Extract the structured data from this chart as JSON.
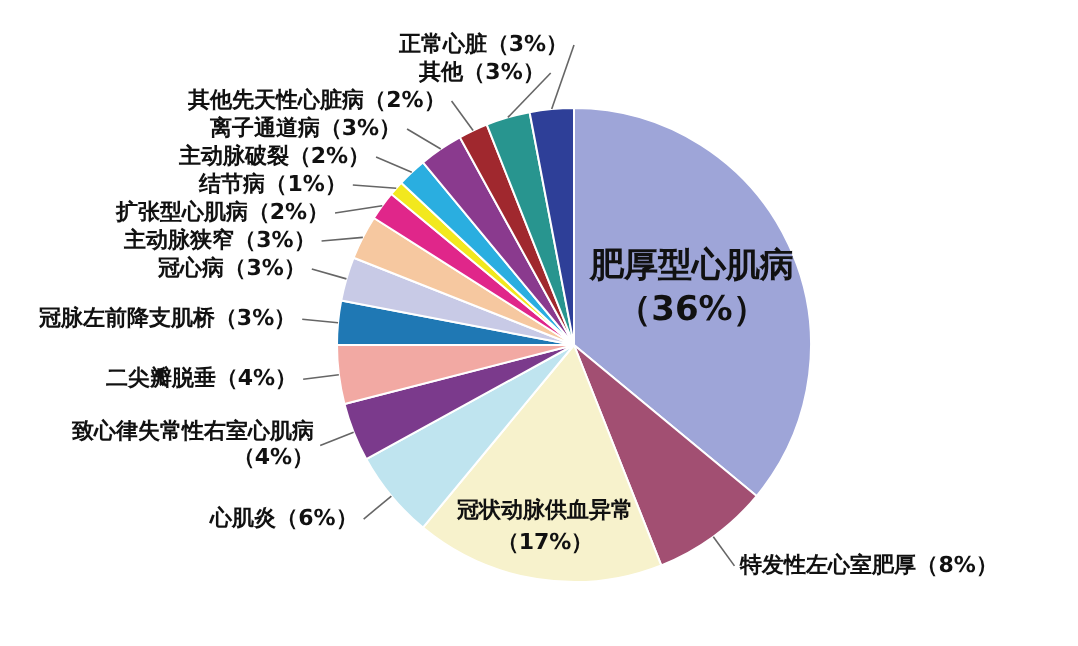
{
  "chart_data": {
    "type": "pie",
    "categories": [
      "肥厚型心肌病",
      "特发性左心室肥厚",
      "冠状动脉供血异常",
      "心肌炎",
      "致心律失常性右室心肌病",
      "二尖瓣脱垂",
      "冠脉左前降支肌桥",
      "冠心病",
      "主动脉狭窄",
      "扩张型心肌病",
      "结节病",
      "主动脉破裂",
      "离子通道病",
      "其他先天性心脏病",
      "其他",
      "正常心脏"
    ],
    "values": [
      36,
      8,
      17,
      6,
      4,
      4,
      3,
      3,
      3,
      2,
      1,
      2,
      3,
      2,
      3,
      3
    ],
    "value_labels": [
      "（36%）",
      "（8%）",
      "（17%）",
      "（6%）",
      "（4%）",
      "（4%）",
      "（3%）",
      "（3%）",
      "（3%）",
      "（2%）",
      "（1%）",
      "（2%）",
      "（3%）",
      "（2%）",
      "（3%）",
      "（3%）"
    ],
    "colors": [
      "#9ea5d8",
      "#a24f72",
      "#f7f2cc",
      "#bfe4ef",
      "#7b3a8c",
      "#f2a9a3",
      "#1f78b4",
      "#c8cae6",
      "#f6c8a0",
      "#e0268a",
      "#f2e81e",
      "#2aaee0",
      "#8a3a8e",
      "#a0282e",
      "#28958f",
      "#2e3f98"
    ],
    "legend": false
  }
}
